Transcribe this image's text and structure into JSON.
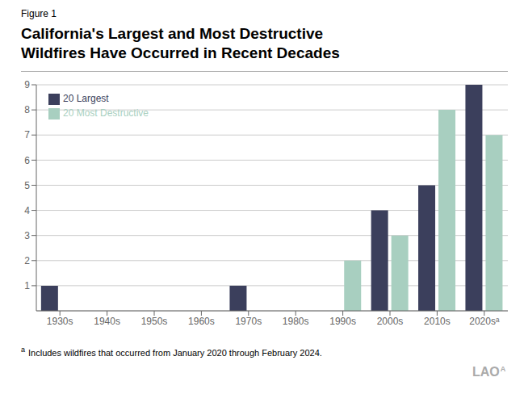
{
  "chart_data": {
    "type": "bar",
    "title": "California's Largest and Most Destructive\nWildfires Have Occurred in Recent Decades",
    "subtitle": "Figure 1",
    "categories": [
      "1930s",
      "1940s",
      "1950s",
      "1960s",
      "1970s",
      "1980s",
      "1990s",
      "2000s",
      "2010s",
      "2020sᵃ"
    ],
    "series": [
      {
        "name": "20 Largest",
        "color": "#3b3f5c",
        "values": [
          1,
          0,
          0,
          0,
          1,
          0,
          0,
          4,
          5,
          9
        ]
      },
      {
        "name": "20 Most Destructive",
        "color": "#a8cfc0",
        "values": [
          0,
          0,
          0,
          0,
          0,
          0,
          2,
          3,
          8,
          7
        ]
      }
    ],
    "ylim": [
      0,
      9
    ],
    "yticks": [
      1,
      2,
      3,
      4,
      5,
      6,
      7,
      8,
      9
    ],
    "grid": true,
    "legend": "upper left",
    "annotations": [
      "a",
      "Includes wildfires that occurred from January 2020 through February 2024.",
      "LAO",
      "A"
    ]
  }
}
